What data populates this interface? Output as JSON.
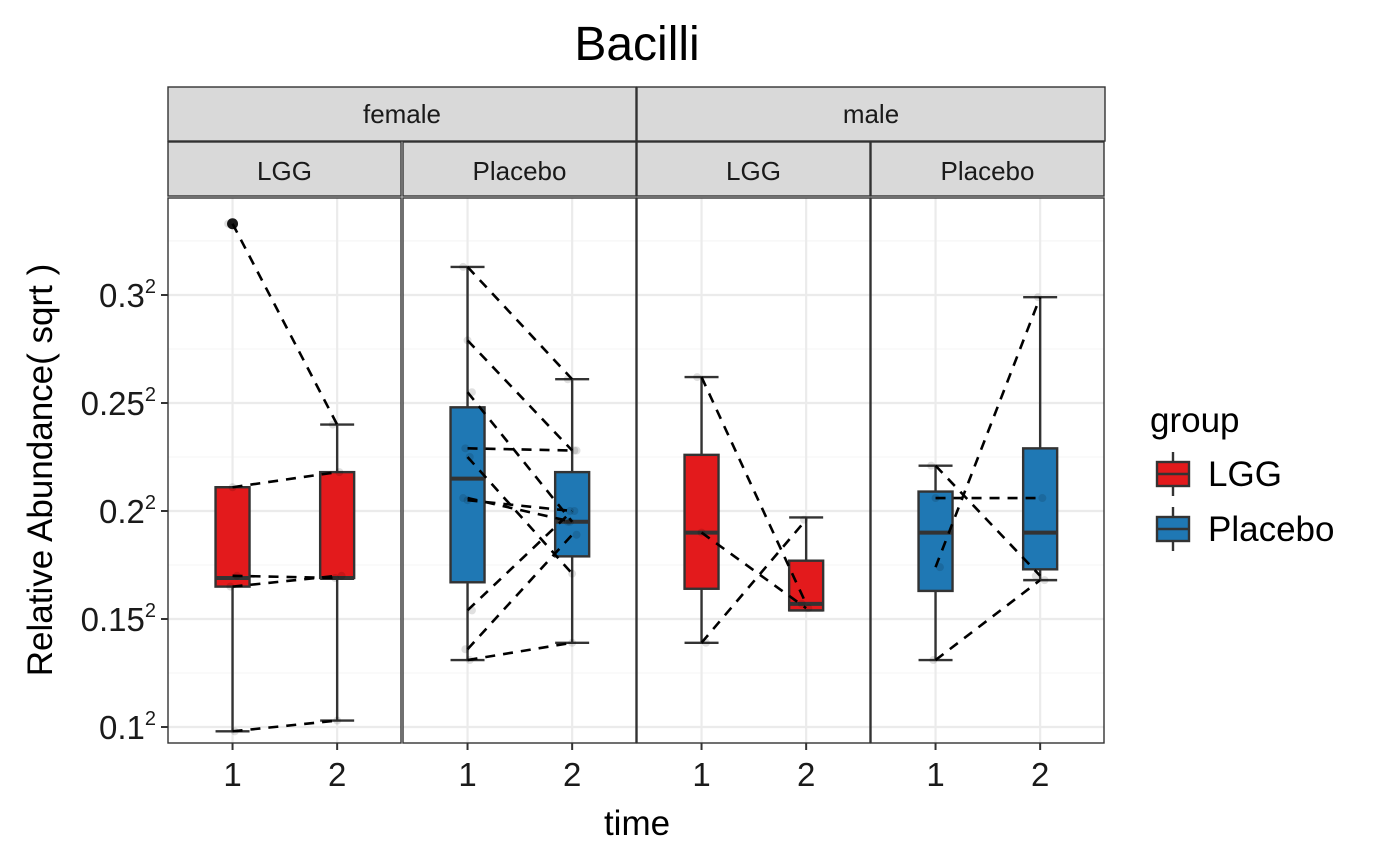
{
  "chart_data": {
    "type": "boxplot",
    "title": "Bacilli",
    "xlabel": "time",
    "ylabel": "Relative Abundance( sqrt )",
    "x_categories": [
      "1",
      "2"
    ],
    "y_scale": "sqrt",
    "ylim": [
      0.0926,
      0.3449
    ],
    "y_ticks": [
      {
        "base": "0.1",
        "exp": "2",
        "value": 0.1
      },
      {
        "base": "0.15",
        "exp": "2",
        "value": 0.15
      },
      {
        "base": "0.2",
        "exp": "2",
        "value": 0.2
      },
      {
        "base": "0.25",
        "exp": "2",
        "value": 0.25
      },
      {
        "base": "0.3",
        "exp": "2",
        "value": 0.3
      }
    ],
    "legend": {
      "title": "group",
      "position": "right",
      "entries": [
        {
          "label": "LGG",
          "color": "#e31a1c"
        },
        {
          "label": "Placebo",
          "color": "#1f78b4"
        }
      ]
    },
    "facet_rows": [
      {
        "label": "female",
        "sub_panels": [
          "LGG",
          "Placebo"
        ]
      },
      {
        "label": "male",
        "sub_panels": [
          "LGG",
          "Placebo"
        ]
      }
    ],
    "panels": [
      {
        "sex": "female",
        "group": "LGG",
        "color": "#e31a1c",
        "boxes": [
          {
            "time": "1",
            "whisker_low": 0.098,
            "q1": 0.165,
            "median": 0.169,
            "q3": 0.211,
            "whisker_high": 0.211
          },
          {
            "time": "2",
            "whisker_low": 0.103,
            "q1": 0.169,
            "median": 0.169,
            "q3": 0.218,
            "whisker_high": 0.24
          }
        ],
        "outliers": [
          {
            "time": "1",
            "value": 0.333
          }
        ],
        "paired": [
          [
            0.333,
            0.24
          ],
          [
            0.211,
            0.218
          ],
          [
            0.17,
            0.169
          ],
          [
            0.165,
            0.17
          ],
          [
            0.098,
            0.103
          ]
        ]
      },
      {
        "sex": "female",
        "group": "Placebo",
        "color": "#1f78b4",
        "boxes": [
          {
            "time": "1",
            "whisker_low": 0.131,
            "q1": 0.167,
            "median": 0.215,
            "q3": 0.248,
            "whisker_high": 0.313
          },
          {
            "time": "2",
            "whisker_low": 0.139,
            "q1": 0.179,
            "median": 0.195,
            "q3": 0.218,
            "whisker_high": 0.261
          }
        ],
        "outliers": [],
        "paired": [
          [
            0.313,
            0.261
          ],
          [
            0.279,
            0.228
          ],
          [
            0.255,
            0.195
          ],
          [
            0.229,
            0.228
          ],
          [
            0.225,
            0.171
          ],
          [
            0.206,
            0.195
          ],
          [
            0.205,
            0.2
          ],
          [
            0.154,
            0.2
          ],
          [
            0.136,
            0.189
          ],
          [
            0.131,
            0.139
          ]
        ]
      },
      {
        "sex": "male",
        "group": "LGG",
        "color": "#e31a1c",
        "boxes": [
          {
            "time": "1",
            "whisker_low": 0.139,
            "q1": 0.164,
            "median": 0.19,
            "q3": 0.226,
            "whisker_high": 0.262
          },
          {
            "time": "2",
            "whisker_low": 0.154,
            "q1": 0.154,
            "median": 0.157,
            "q3": 0.177,
            "whisker_high": 0.197
          }
        ],
        "outliers": [],
        "paired": [
          [
            0.262,
            0.157
          ],
          [
            0.19,
            0.155
          ],
          [
            0.139,
            0.196
          ]
        ]
      },
      {
        "sex": "male",
        "group": "Placebo",
        "color": "#1f78b4",
        "boxes": [
          {
            "time": "1",
            "whisker_low": 0.131,
            "q1": 0.163,
            "median": 0.19,
            "q3": 0.209,
            "whisker_high": 0.221
          },
          {
            "time": "2",
            "whisker_low": 0.168,
            "q1": 0.173,
            "median": 0.19,
            "q3": 0.229,
            "whisker_high": 0.299
          }
        ],
        "outliers": [],
        "paired": [
          [
            0.221,
            0.17
          ],
          [
            0.206,
            0.206
          ],
          [
            0.174,
            0.299
          ],
          [
            0.131,
            0.168
          ]
        ]
      }
    ]
  }
}
